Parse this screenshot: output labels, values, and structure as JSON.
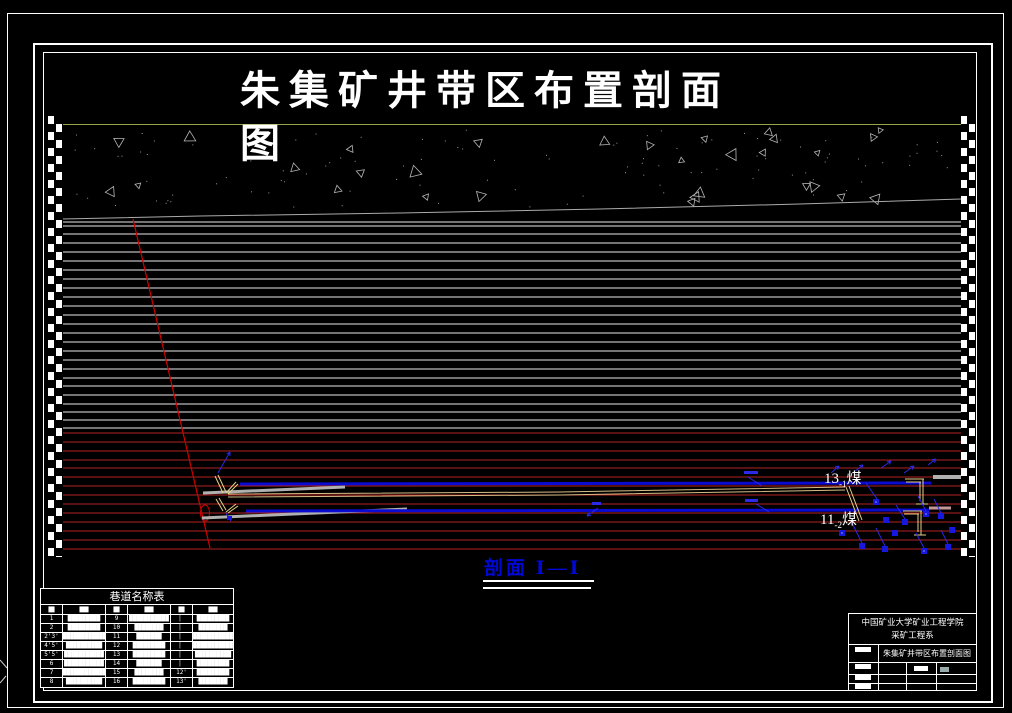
{
  "main_title": {
    "line1": "朱集矿井带区布置剖面",
    "line2": "图"
  },
  "section_label": {
    "prefix": "剖面",
    "numerals": "Ⅰ—Ⅰ"
  },
  "seam_labels": {
    "seam1": {
      "num": "13",
      "sub": "-1",
      "word": "煤"
    },
    "seam2": {
      "num": "11",
      "sub": "-2",
      "word": "煤"
    }
  },
  "roadway_table": {
    "title": "巷道名称表",
    "headers": [
      "██",
      "███",
      "██",
      "███",
      "██",
      "███"
    ],
    "rows": [
      [
        "1",
        "█████████",
        "9",
        "███████████",
        "▏",
        "█████████"
      ],
      [
        "2",
        "█████████",
        "10",
        "████████",
        "▏",
        "████████"
      ],
      [
        "2'3'",
        "████████████",
        "11",
        "███████",
        "▏",
        "███████████"
      ],
      [
        "4'5'",
        "██████████",
        "12",
        "█████████",
        "▏",
        "███████████"
      ],
      [
        "5'5'",
        "███████████",
        "13",
        "█████████",
        "▏",
        "██████████"
      ],
      [
        "6",
        "███████████",
        "14",
        "███████",
        "▏",
        "█████████"
      ],
      [
        "7",
        "████████████",
        "15",
        "████████",
        "12'",
        "█████████"
      ],
      [
        "8",
        "██████████",
        "16",
        "█████████",
        "13'",
        "████████"
      ]
    ]
  },
  "title_block": {
    "org_line1": "中国矿业大学矿业工程学院",
    "org_line2": "采矿工程系",
    "drawing_title": "朱集矿井带区布置剖面图"
  },
  "colors": {
    "background": "#000000",
    "frame": "#ffffff",
    "surface_line": "#9aa54a",
    "white_strata": "#e8e8e8",
    "red_strata": "#b22222",
    "inclined_shaft": "#d00000",
    "roadway_blue": "#0a0ad0",
    "seam_tan": "#d6bd85",
    "chute_yellow": "#e9d188",
    "tunnel_gray": "#b0b0b0",
    "section_label_blue": "#0008d8"
  }
}
